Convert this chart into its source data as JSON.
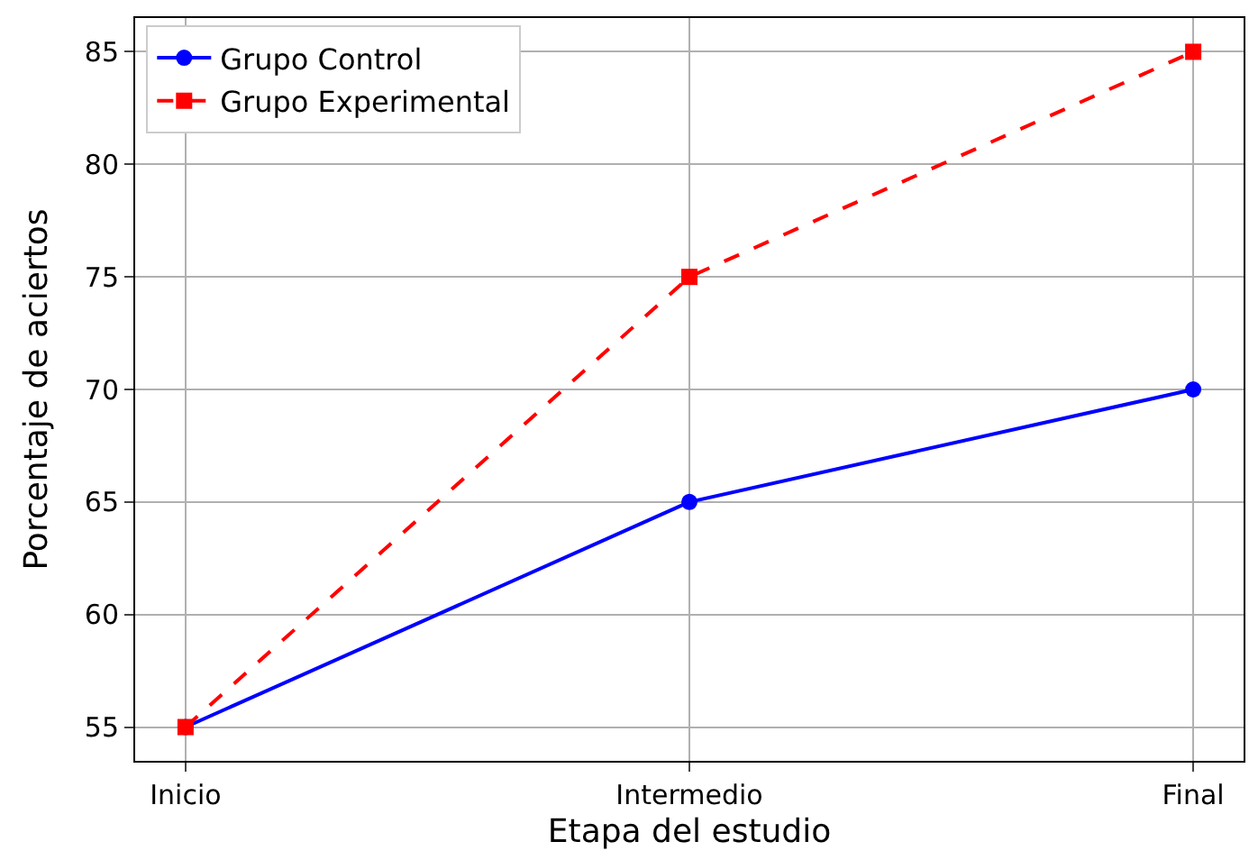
{
  "chart_data": {
    "type": "line",
    "xlabel": "Etapa del estudio",
    "ylabel": "Porcentaje de aciertos",
    "categories": [
      "Inicio",
      "Intermedio",
      "Final"
    ],
    "series": [
      {
        "name": "Grupo Control",
        "color": "#0000ff",
        "values": [
          55,
          65,
          70
        ],
        "marker": "circle",
        "line_style": "solid"
      },
      {
        "name": "Grupo Experimental",
        "color": "#ff0000",
        "values": [
          55,
          75,
          85
        ],
        "marker": "square",
        "line_style": "dashed"
      }
    ],
    "ylim": [
      53.5,
      86.5
    ],
    "yticks": [
      55,
      60,
      65,
      70,
      75,
      80,
      85
    ],
    "grid": true,
    "legend": "top left"
  }
}
